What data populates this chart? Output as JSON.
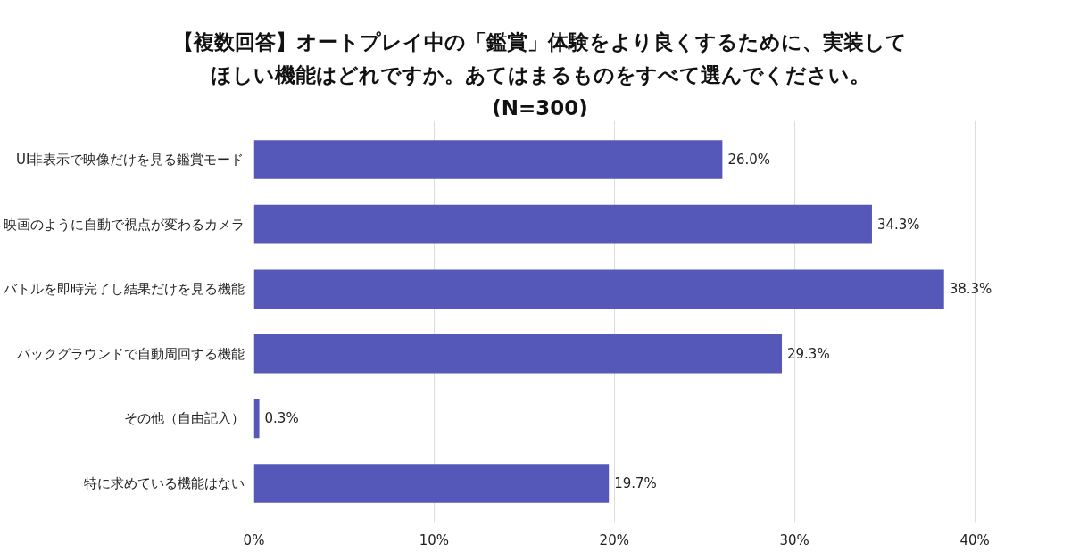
{
  "chart_data": {
    "type": "bar",
    "orientation": "horizontal",
    "title": "【複数回答】オートプレイ中の「鑑賞」体験をより良くするために、実装してほしい機能はどれですか。あてはまるものをすべて選んでください。(N=300)",
    "categories": [
      "UI非表示で映像だけを見る鑑賞モード",
      "映画のように自動で視点が変わるカメラ",
      "バトルを即時完了し結果だけを見る機能",
      "バックグラウンドで自動周回する機能",
      "その他（自由記入）",
      "特に求めている機能はない"
    ],
    "values": [
      26.0,
      34.3,
      38.3,
      29.3,
      0.3,
      19.7
    ],
    "value_labels": [
      "26.0%",
      "34.3%",
      "38.3%",
      "29.3%",
      "0.3%",
      "19.7%"
    ],
    "color": "#5558b8",
    "xlim": [
      0,
      40
    ],
    "xticks": [
      {
        "value": 0,
        "label": "0%"
      },
      {
        "value": 10,
        "label": "10%"
      },
      {
        "value": 20,
        "label": "20%"
      },
      {
        "value": 30,
        "label": "30%"
      },
      {
        "value": 40,
        "label": "40%"
      }
    ],
    "grid": "x"
  }
}
